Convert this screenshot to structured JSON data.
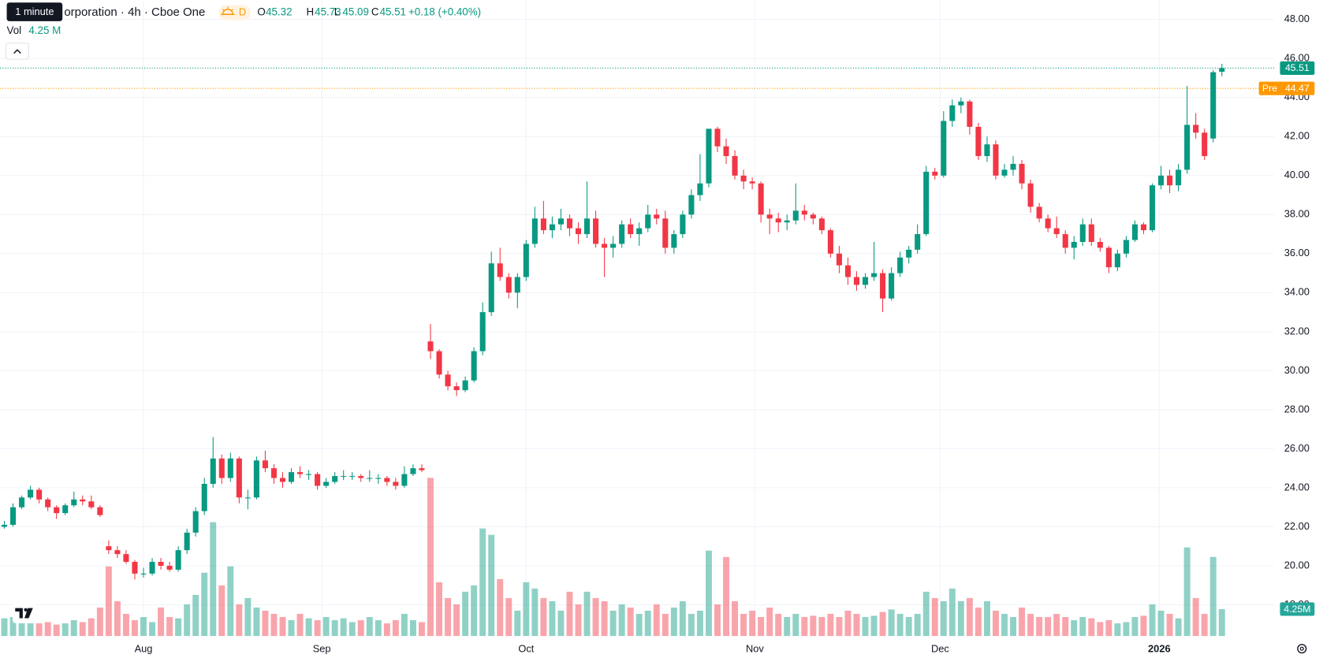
{
  "ui": {
    "tooltip": "1 minute",
    "title": "orporation · 4h · Cboe One",
    "interval_badge": "D",
    "legend": [
      {
        "label": "O",
        "value": 45.32
      },
      {
        "label": "H",
        "value": 45.73
      },
      {
        "label": "L",
        "value": 45.09
      },
      {
        "label": "C",
        "value": 45.51
      }
    ],
    "change": "+0.18 (+0.40%)",
    "volume_label": "Vol",
    "volume_value": "4.25 M"
  },
  "chart_data": {
    "type": "candlestick",
    "up_color": "#089981",
    "down_color": "#f23645",
    "grid": true,
    "ylim": [
      16.4,
      49
    ],
    "yticks": [
      {
        "value": 18,
        "label": "18.00"
      },
      {
        "value": 20,
        "label": "20.00"
      },
      {
        "value": 22,
        "label": "22.00"
      },
      {
        "value": 24,
        "label": "24.00"
      },
      {
        "value": 26,
        "label": "26.00"
      },
      {
        "value": 28,
        "label": "28.00"
      },
      {
        "value": 30,
        "label": "30.00"
      },
      {
        "value": 32,
        "label": "32.00"
      },
      {
        "value": 34,
        "label": "34.00"
      },
      {
        "value": 36,
        "label": "36.00"
      },
      {
        "value": 38,
        "label": "38.00"
      },
      {
        "value": 40,
        "label": "40.00"
      },
      {
        "value": 42,
        "label": "42.00"
      },
      {
        "value": 44,
        "label": "44.00"
      },
      {
        "value": 46,
        "label": "46.00"
      },
      {
        "value": 48,
        "label": "48.00"
      }
    ],
    "xlim": [
      -0.5,
      146
    ],
    "xticks": [
      {
        "value": 16,
        "label": "Aug"
      },
      {
        "value": 36.5,
        "label": "Sep"
      },
      {
        "value": 60,
        "label": "Oct"
      },
      {
        "value": 86.3,
        "label": "Nov"
      },
      {
        "value": 107.6,
        "label": "Dec"
      },
      {
        "value": 132.8,
        "label": "2026"
      }
    ],
    "last_price": 45.51,
    "premarket": {
      "label": "Pre",
      "value": 44.47,
      "color": "#ff9800"
    },
    "volume_badge": "4.25M",
    "candles": [
      [
        22.0,
        22.3,
        21.9,
        22.1
      ],
      [
        22.1,
        23.2,
        22.0,
        23.0
      ],
      [
        23.0,
        23.6,
        22.9,
        23.5
      ],
      [
        23.5,
        24.1,
        23.4,
        23.9
      ],
      [
        23.9,
        24.0,
        23.2,
        23.4
      ],
      [
        23.4,
        23.5,
        22.8,
        23.0
      ],
      [
        23.0,
        23.1,
        22.4,
        22.7
      ],
      [
        22.7,
        23.2,
        22.6,
        23.1
      ],
      [
        23.1,
        23.8,
        23.0,
        23.4
      ],
      [
        23.4,
        23.6,
        23.1,
        23.3
      ],
      [
        23.3,
        23.6,
        22.9,
        23.0
      ],
      [
        23.0,
        23.1,
        22.5,
        22.6
      ],
      [
        21.0,
        21.3,
        20.6,
        20.8
      ],
      [
        20.8,
        21.0,
        20.4,
        20.6
      ],
      [
        20.6,
        20.8,
        20.1,
        20.2
      ],
      [
        20.2,
        20.3,
        19.3,
        19.6
      ],
      [
        19.6,
        19.9,
        19.4,
        19.6
      ],
      [
        19.6,
        20.4,
        19.5,
        20.2
      ],
      [
        20.2,
        20.4,
        19.8,
        20.0
      ],
      [
        20.0,
        20.2,
        19.7,
        19.8
      ],
      [
        19.8,
        21.0,
        19.7,
        20.8
      ],
      [
        20.8,
        21.9,
        20.6,
        21.7
      ],
      [
        21.7,
        23.0,
        21.5,
        22.8
      ],
      [
        22.8,
        24.5,
        22.6,
        24.2
      ],
      [
        24.2,
        26.6,
        24.0,
        25.5
      ],
      [
        25.5,
        25.7,
        24.2,
        24.5
      ],
      [
        24.5,
        25.8,
        24.3,
        25.5
      ],
      [
        25.5,
        25.6,
        23.2,
        23.5
      ],
      [
        23.5,
        23.9,
        22.9,
        23.5
      ],
      [
        23.5,
        25.6,
        23.4,
        25.4
      ],
      [
        25.4,
        25.9,
        24.8,
        25.0
      ],
      [
        25.0,
        25.2,
        24.2,
        24.5
      ],
      [
        24.5,
        24.8,
        24.0,
        24.3
      ],
      [
        24.3,
        25.0,
        24.2,
        24.8
      ],
      [
        24.8,
        25.1,
        24.5,
        24.7
      ],
      [
        24.7,
        24.9,
        24.4,
        24.7
      ],
      [
        24.7,
        24.8,
        23.9,
        24.1
      ],
      [
        24.1,
        24.5,
        24.0,
        24.3
      ],
      [
        24.3,
        24.8,
        24.2,
        24.6
      ],
      [
        24.6,
        24.9,
        24.4,
        24.6
      ],
      [
        24.6,
        24.8,
        24.4,
        24.6
      ],
      [
        24.6,
        24.7,
        24.3,
        24.5
      ],
      [
        24.5,
        24.9,
        24.3,
        24.5
      ],
      [
        24.5,
        24.7,
        24.2,
        24.5
      ],
      [
        24.5,
        24.6,
        24.1,
        24.3
      ],
      [
        24.3,
        24.5,
        23.9,
        24.1
      ],
      [
        24.1,
        25.1,
        24.0,
        24.7
      ],
      [
        24.7,
        25.2,
        24.6,
        25.0
      ],
      [
        25.0,
        25.2,
        24.8,
        24.9
      ],
      [
        31.5,
        32.4,
        30.6,
        31.0
      ],
      [
        31.0,
        31.1,
        29.6,
        29.8
      ],
      [
        29.8,
        30.0,
        29.0,
        29.2
      ],
      [
        29.2,
        29.4,
        28.7,
        29.0
      ],
      [
        29.0,
        29.7,
        28.9,
        29.5
      ],
      [
        29.5,
        31.2,
        29.4,
        31.0
      ],
      [
        31.0,
        33.5,
        30.8,
        33.0
      ],
      [
        33.0,
        36.1,
        32.8,
        35.5
      ],
      [
        35.5,
        36.3,
        34.6,
        34.8
      ],
      [
        34.8,
        35.0,
        33.7,
        34.0
      ],
      [
        34.0,
        35.0,
        33.2,
        34.8
      ],
      [
        34.8,
        36.7,
        34.6,
        36.5
      ],
      [
        36.5,
        38.4,
        36.3,
        37.8
      ],
      [
        37.8,
        38.7,
        37.0,
        37.2
      ],
      [
        37.2,
        37.9,
        36.8,
        37.5
      ],
      [
        37.5,
        38.3,
        37.2,
        37.8
      ],
      [
        37.8,
        38.0,
        36.9,
        37.3
      ],
      [
        37.3,
        37.6,
        36.5,
        37.0
      ],
      [
        37.0,
        39.7,
        36.8,
        37.8
      ],
      [
        37.8,
        38.2,
        36.3,
        36.5
      ],
      [
        36.5,
        36.8,
        34.8,
        36.3
      ],
      [
        36.3,
        36.9,
        35.8,
        36.5
      ],
      [
        36.5,
        37.7,
        36.3,
        37.5
      ],
      [
        37.5,
        37.8,
        36.8,
        37.0
      ],
      [
        37.0,
        37.6,
        36.4,
        37.3
      ],
      [
        37.3,
        38.5,
        37.1,
        38.0
      ],
      [
        38.0,
        38.3,
        37.5,
        37.8
      ],
      [
        37.8,
        38.2,
        36.0,
        36.3
      ],
      [
        36.3,
        37.2,
        36.0,
        37.0
      ],
      [
        37.0,
        38.2,
        36.8,
        38.0
      ],
      [
        38.0,
        39.3,
        37.8,
        39.0
      ],
      [
        39.0,
        41.1,
        38.7,
        39.6
      ],
      [
        39.6,
        42.4,
        39.4,
        42.4
      ],
      [
        42.4,
        42.5,
        41.2,
        41.5
      ],
      [
        41.5,
        41.9,
        40.6,
        41.0
      ],
      [
        41.0,
        41.3,
        39.8,
        40.0
      ],
      [
        40.0,
        40.3,
        39.3,
        39.7
      ],
      [
        39.7,
        39.9,
        39.3,
        39.6
      ],
      [
        39.6,
        39.7,
        37.6,
        38.0
      ],
      [
        38.0,
        38.3,
        37.0,
        37.8
      ],
      [
        37.8,
        38.1,
        37.1,
        37.6
      ],
      [
        37.6,
        38.0,
        37.2,
        37.7
      ],
      [
        37.7,
        39.6,
        37.5,
        38.2
      ],
      [
        38.2,
        38.5,
        37.7,
        38.0
      ],
      [
        38.0,
        38.1,
        37.5,
        37.8
      ],
      [
        37.8,
        37.9,
        37.0,
        37.2
      ],
      [
        37.2,
        37.3,
        35.8,
        36.0
      ],
      [
        36.0,
        36.4,
        35.0,
        35.4
      ],
      [
        35.4,
        35.8,
        34.4,
        34.8
      ],
      [
        34.8,
        35.1,
        34.1,
        34.4
      ],
      [
        34.4,
        35.0,
        34.2,
        34.8
      ],
      [
        34.8,
        36.6,
        34.6,
        35.0
      ],
      [
        35.0,
        35.2,
        33.0,
        33.7
      ],
      [
        33.7,
        35.3,
        33.6,
        35.0
      ],
      [
        35.0,
        36.1,
        34.8,
        35.8
      ],
      [
        35.8,
        36.4,
        35.5,
        36.2
      ],
      [
        36.2,
        37.5,
        36.0,
        37.0
      ],
      [
        37.0,
        40.5,
        36.9,
        40.2
      ],
      [
        40.2,
        40.4,
        39.8,
        40.0
      ],
      [
        40.0,
        43.3,
        39.9,
        42.8
      ],
      [
        42.8,
        43.9,
        42.5,
        43.6
      ],
      [
        43.6,
        44.0,
        43.2,
        43.8
      ],
      [
        43.8,
        43.9,
        42.1,
        42.5
      ],
      [
        42.5,
        42.7,
        40.8,
        41.0
      ],
      [
        41.0,
        42.0,
        40.7,
        41.6
      ],
      [
        41.6,
        41.8,
        39.8,
        40.0
      ],
      [
        40.0,
        40.6,
        39.9,
        40.3
      ],
      [
        40.3,
        41.0,
        40.0,
        40.6
      ],
      [
        40.6,
        40.8,
        39.3,
        39.6
      ],
      [
        39.6,
        39.8,
        38.1,
        38.4
      ],
      [
        38.4,
        38.6,
        37.6,
        37.8
      ],
      [
        37.8,
        38.0,
        37.1,
        37.3
      ],
      [
        37.3,
        37.9,
        36.8,
        37.0
      ],
      [
        37.0,
        37.2,
        36.0,
        36.3
      ],
      [
        36.3,
        36.9,
        35.7,
        36.6
      ],
      [
        36.6,
        37.8,
        36.4,
        37.5
      ],
      [
        37.5,
        37.8,
        36.4,
        36.6
      ],
      [
        36.6,
        36.8,
        36.1,
        36.3
      ],
      [
        36.3,
        36.4,
        35.0,
        35.3
      ],
      [
        35.3,
        36.2,
        35.1,
        36.0
      ],
      [
        36.0,
        36.9,
        35.8,
        36.7
      ],
      [
        36.7,
        37.7,
        36.6,
        37.5
      ],
      [
        37.5,
        37.6,
        37.0,
        37.2
      ],
      [
        37.2,
        39.6,
        37.1,
        39.5
      ],
      [
        39.5,
        40.5,
        39.3,
        40.0
      ],
      [
        40.0,
        40.3,
        39.1,
        39.5
      ],
      [
        39.5,
        40.6,
        39.2,
        40.3
      ],
      [
        40.3,
        44.6,
        40.1,
        42.6
      ],
      [
        42.6,
        43.2,
        41.9,
        42.2
      ],
      [
        42.2,
        42.4,
        40.8,
        41.0
      ],
      [
        41.9,
        45.4,
        41.7,
        45.3
      ],
      [
        45.32,
        45.73,
        45.09,
        45.51
      ]
    ],
    "volumes": [
      2.8,
      3.0,
      2.2,
      2.5,
      2.0,
      2.2,
      1.8,
      2.0,
      2.5,
      2.2,
      2.8,
      4.5,
      11,
      5.5,
      3.5,
      2.5,
      3.0,
      2.2,
      4.5,
      3.0,
      2.8,
      5.0,
      6.5,
      10,
      18,
      8,
      11,
      5,
      6,
      4.5,
      4,
      3.5,
      3,
      2.5,
      3.5,
      2.8,
      2.5,
      3,
      2.5,
      2.8,
      2.2,
      2.5,
      3,
      2.5,
      2,
      2.5,
      3.5,
      2.5,
      2.2,
      25,
      8.5,
      6,
      5,
      7,
      8,
      17,
      16,
      9,
      6,
      4,
      8.5,
      7.5,
      6,
      5.5,
      4,
      7,
      5,
      7,
      6,
      5.5,
      4,
      5,
      4.5,
      3.5,
      4,
      5,
      3.5,
      4.5,
      5.5,
      3.5,
      4,
      13.5,
      5,
      12.5,
      5.5,
      3.5,
      4,
      3,
      4.5,
      3.5,
      3,
      3.5,
      3,
      3.2,
      3,
      3.5,
      3,
      4,
      3.5,
      3,
      3.2,
      3.8,
      4.2,
      3.5,
      3,
      3.5,
      7,
      6,
      5.5,
      7.5,
      5.5,
      6,
      4.5,
      5.5,
      4,
      3.5,
      3,
      4.5,
      3.5,
      3,
      3,
      3.5,
      3,
      2.5,
      3,
      2.8,
      2.2,
      2.5,
      2.0,
      2.2,
      3.0,
      3.2,
      5.0,
      4.0,
      3.5,
      2.8,
      14,
      6,
      3.5,
      12.5,
      4.25
    ]
  }
}
